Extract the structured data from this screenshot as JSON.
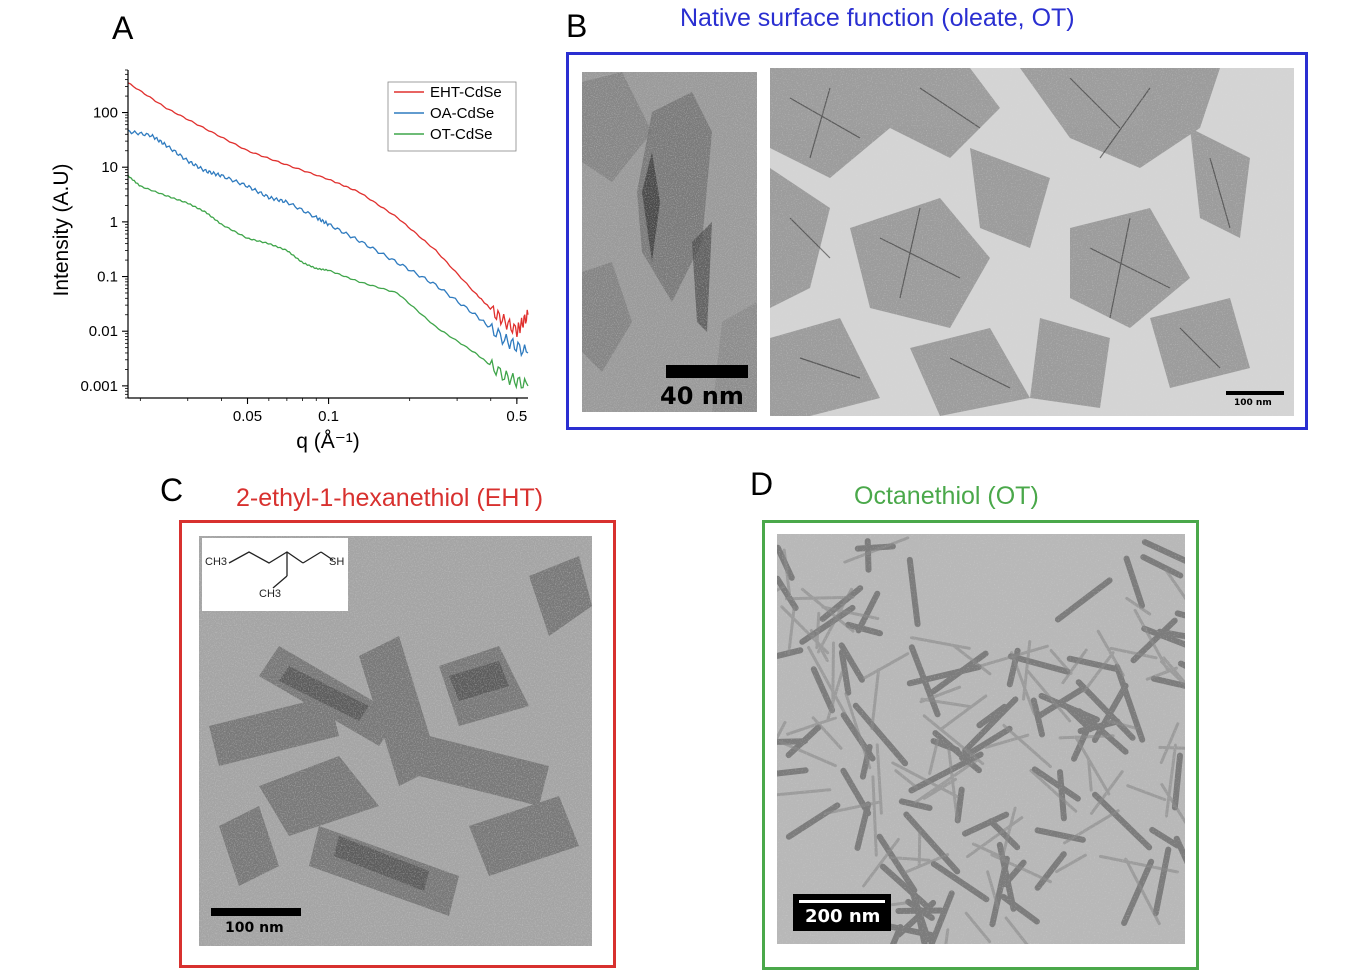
{
  "panels": {
    "a": {
      "letter": "A"
    },
    "b": {
      "letter": "B",
      "title": "Native surface function (oleate, OT)",
      "scalebar_left": "40 nm",
      "scalebar_right": "100 nm",
      "color": "#2a2fd1"
    },
    "c": {
      "letter": "C",
      "title": "2-ethyl-1-hexanethiol (EHT)",
      "scalebar": "100 nm",
      "color": "#d8312f",
      "molecule": {
        "ch3_top": "CH3",
        "ch3_bottom": "CH3",
        "sh": "SH"
      }
    },
    "d": {
      "letter": "D",
      "title": "Octanethiol (OT)",
      "scalebar": "200 nm",
      "color": "#4aa84a"
    }
  },
  "chart_data": {
    "type": "line",
    "xlabel": "q (Å⁻¹)",
    "ylabel": "Intensity (A.U)",
    "xscale": "log",
    "yscale": "log",
    "xlim": [
      0.018,
      0.55
    ],
    "ylim": [
      0.0006,
      600
    ],
    "xticks": [
      {
        "value": 0.05,
        "label": "0.05"
      },
      {
        "value": 0.1,
        "label": "0.1"
      },
      {
        "value": 0.5,
        "label": "0.5"
      }
    ],
    "yticks": [
      {
        "value": 100,
        "label": "100"
      },
      {
        "value": 10,
        "label": "10"
      },
      {
        "value": 1,
        "label": "1"
      },
      {
        "value": 0.1,
        "label": "0.1"
      },
      {
        "value": 0.01,
        "label": "0.01"
      },
      {
        "value": 0.001,
        "label": "0.001"
      }
    ],
    "legend_position": "top-right",
    "series": [
      {
        "name": "EHT-CdSe",
        "color": "#e0302e",
        "x": [
          0.018,
          0.025,
          0.035,
          0.05,
          0.07,
          0.1,
          0.13,
          0.18,
          0.25,
          0.35,
          0.42,
          0.5,
          0.55
        ],
        "y": [
          350,
          120,
          50,
          20,
          11,
          6,
          3.5,
          1.2,
          0.3,
          0.05,
          0.02,
          0.01,
          0.02
        ]
      },
      {
        "name": "OA-CdSe",
        "color": "#2f7bbf",
        "x": [
          0.018,
          0.022,
          0.025,
          0.03,
          0.035,
          0.04,
          0.05,
          0.06,
          0.07,
          0.09,
          0.1,
          0.13,
          0.18,
          0.25,
          0.35,
          0.45,
          0.55
        ],
        "y": [
          45,
          38,
          25,
          13,
          8.5,
          7,
          4.5,
          2.8,
          2.3,
          1.2,
          0.9,
          0.45,
          0.18,
          0.07,
          0.02,
          0.007,
          0.004
        ]
      },
      {
        "name": "OT-CdSe",
        "color": "#3fa54a",
        "x": [
          0.018,
          0.02,
          0.025,
          0.03,
          0.035,
          0.04,
          0.05,
          0.06,
          0.07,
          0.08,
          0.09,
          0.1,
          0.13,
          0.18,
          0.25,
          0.35,
          0.45,
          0.55
        ],
        "y": [
          7,
          4.5,
          3,
          2.2,
          1.5,
          0.9,
          0.5,
          0.4,
          0.3,
          0.18,
          0.14,
          0.13,
          0.08,
          0.05,
          0.012,
          0.004,
          0.0015,
          0.001
        ]
      }
    ]
  }
}
